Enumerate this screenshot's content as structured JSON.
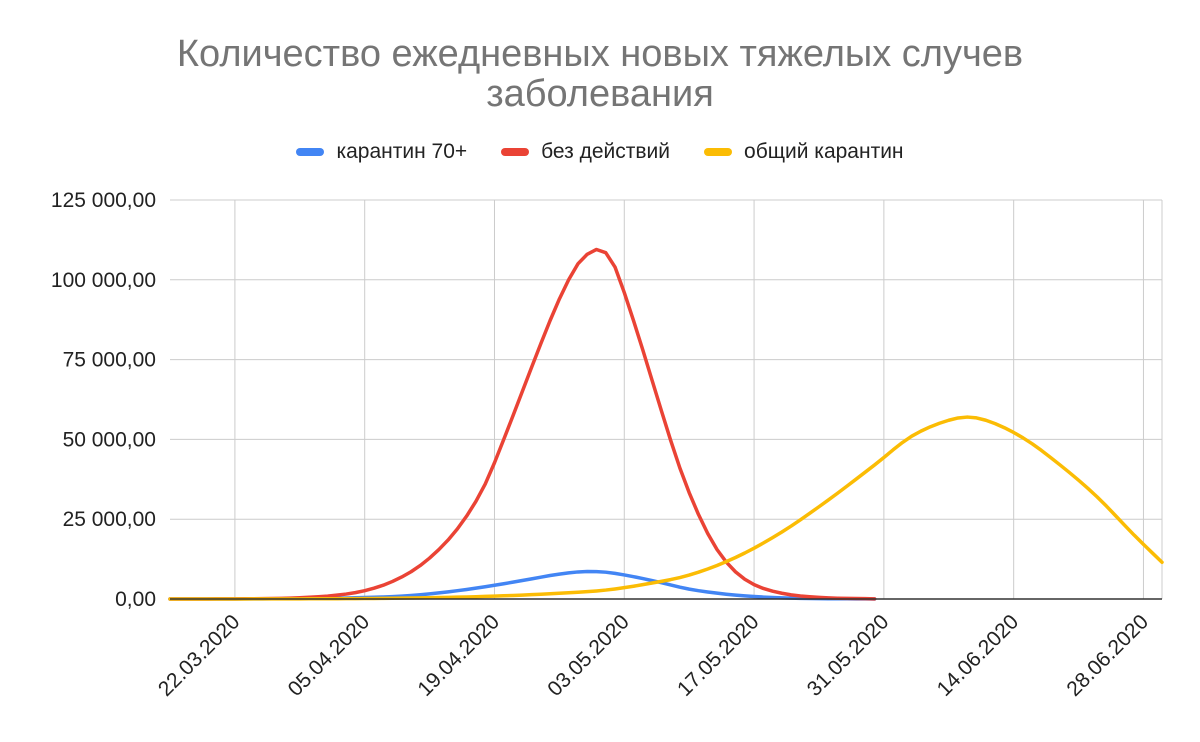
{
  "chart_data": {
    "type": "line",
    "title_line1": "Количество ежедневных новых тяжелых случев",
    "title_line2": "заболевания",
    "xlabel": "",
    "ylabel": "",
    "ylim": [
      0,
      125000
    ],
    "y_ticks": [
      0,
      25000,
      50000,
      75000,
      100000,
      125000
    ],
    "y_tick_labels": [
      "0,00",
      "25 000,00",
      "50 000,00",
      "75 000,00",
      "100 000,00",
      "125 000,00"
    ],
    "x_tick_labels": [
      "22.03.2020",
      "05.04.2020",
      "19.04.2020",
      "03.05.2020",
      "17.05.2020",
      "31.05.2020",
      "14.06.2020",
      "28.06.2020"
    ],
    "x_range": [
      "2020-03-15",
      "2020-06-30"
    ],
    "grid": true,
    "legend_position": "top",
    "series": [
      {
        "name": "карантин 70+",
        "color": "#4285f4",
        "end_date": "2020-05-30",
        "points": [
          [
            "2020-03-15",
            0
          ],
          [
            "2020-03-22",
            20
          ],
          [
            "2020-03-29",
            130
          ],
          [
            "2020-04-05",
            450
          ],
          [
            "2020-04-10",
            1100
          ],
          [
            "2020-04-15",
            2600
          ],
          [
            "2020-04-19",
            4300
          ],
          [
            "2020-04-23",
            6300
          ],
          [
            "2020-04-26",
            7800
          ],
          [
            "2020-04-29",
            8600
          ],
          [
            "2020-05-01",
            8400
          ],
          [
            "2020-05-04",
            7000
          ],
          [
            "2020-05-07",
            5100
          ],
          [
            "2020-05-10",
            3100
          ],
          [
            "2020-05-14",
            1500
          ],
          [
            "2020-05-18",
            600
          ],
          [
            "2020-05-22",
            200
          ],
          [
            "2020-05-30",
            20
          ]
        ]
      },
      {
        "name": "без действий",
        "color": "#ea4335",
        "end_date": "2020-05-30",
        "points": [
          [
            "2020-03-15",
            0
          ],
          [
            "2020-03-22",
            50
          ],
          [
            "2020-03-29",
            400
          ],
          [
            "2020-04-02",
            1200
          ],
          [
            "2020-04-05",
            2600
          ],
          [
            "2020-04-08",
            5500
          ],
          [
            "2020-04-11",
            10500
          ],
          [
            "2020-04-14",
            18500
          ],
          [
            "2020-04-16",
            26000
          ],
          [
            "2020-04-18",
            36000
          ],
          [
            "2020-04-20",
            50000
          ],
          [
            "2020-04-22",
            65000
          ],
          [
            "2020-04-24",
            80000
          ],
          [
            "2020-04-26",
            94000
          ],
          [
            "2020-04-28",
            105000
          ],
          [
            "2020-04-29",
            108000
          ],
          [
            "2020-04-30",
            109500
          ],
          [
            "2020-05-01",
            108500
          ],
          [
            "2020-05-02",
            104000
          ],
          [
            "2020-05-03",
            96000
          ],
          [
            "2020-05-05",
            78000
          ],
          [
            "2020-05-07",
            59000
          ],
          [
            "2020-05-09",
            41000
          ],
          [
            "2020-05-11",
            26500
          ],
          [
            "2020-05-13",
            15500
          ],
          [
            "2020-05-15",
            8500
          ],
          [
            "2020-05-17",
            4500
          ],
          [
            "2020-05-20",
            1800
          ],
          [
            "2020-05-24",
            500
          ],
          [
            "2020-05-30",
            50
          ]
        ]
      },
      {
        "name": "общий карантин",
        "color": "#fbbc04",
        "end_date": "2020-06-30",
        "points": [
          [
            "2020-03-15",
            0
          ],
          [
            "2020-03-29",
            50
          ],
          [
            "2020-04-05",
            150
          ],
          [
            "2020-04-12",
            400
          ],
          [
            "2020-04-19",
            900
          ],
          [
            "2020-04-26",
            1800
          ],
          [
            "2020-05-01",
            2800
          ],
          [
            "2020-05-05",
            4500
          ],
          [
            "2020-05-10",
            7500
          ],
          [
            "2020-05-15",
            13000
          ],
          [
            "2020-05-20",
            21000
          ],
          [
            "2020-05-25",
            31000
          ],
          [
            "2020-05-30",
            42000
          ],
          [
            "2020-06-03",
            51000
          ],
          [
            "2020-06-07",
            56000
          ],
          [
            "2020-06-09",
            57000
          ],
          [
            "2020-06-11",
            56000
          ],
          [
            "2020-06-15",
            50500
          ],
          [
            "2020-06-19",
            42000
          ],
          [
            "2020-06-23",
            32000
          ],
          [
            "2020-06-27",
            20000
          ],
          [
            "2020-06-30",
            11500
          ]
        ]
      }
    ]
  }
}
